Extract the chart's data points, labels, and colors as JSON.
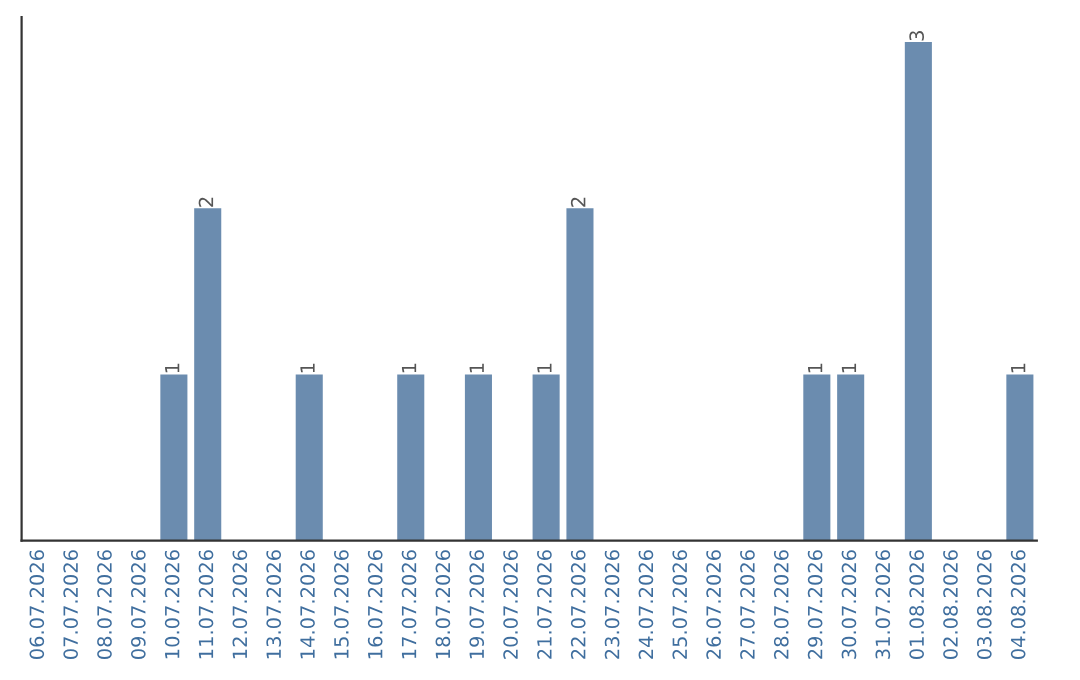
{
  "chart_data": {
    "type": "bar",
    "categories": [
      "06.07.2026",
      "07.07.2026",
      "08.07.2026",
      "09.07.2026",
      "10.07.2026",
      "11.07.2026",
      "12.07.2026",
      "13.07.2026",
      "14.07.2026",
      "15.07.2026",
      "16.07.2026",
      "17.07.2026",
      "18.07.2026",
      "19.07.2026",
      "20.07.2026",
      "21.07.2026",
      "22.07.2026",
      "23.07.2026",
      "24.07.2026",
      "25.07.2026",
      "26.07.2026",
      "27.07.2026",
      "28.07.2026",
      "29.07.2026",
      "30.07.2026",
      "31.07.2026",
      "01.08.2026",
      "02.08.2026",
      "03.08.2026",
      "04.08.2026"
    ],
    "values": [
      0,
      0,
      0,
      0,
      1,
      2,
      0,
      0,
      1,
      0,
      0,
      1,
      0,
      1,
      0,
      1,
      2,
      0,
      0,
      0,
      0,
      0,
      0,
      1,
      1,
      0,
      3,
      0,
      0,
      1
    ],
    "value_labels": [
      null,
      null,
      null,
      null,
      "1",
      "2",
      null,
      null,
      "1",
      null,
      null,
      "1",
      null,
      "1",
      null,
      "1",
      "2",
      null,
      null,
      null,
      null,
      null,
      null,
      "1",
      "1",
      null,
      "3",
      null,
      null,
      "1"
    ],
    "color": "#6b8caf",
    "ylim": [
      0,
      3.15
    ],
    "tick_labels": "x",
    "grid": false,
    "legend": false
  }
}
